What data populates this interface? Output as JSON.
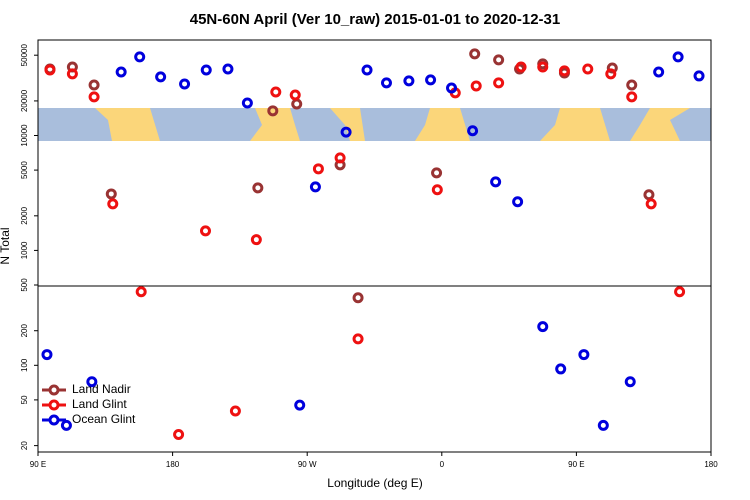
{
  "chart_data": {
    "type": "scatter",
    "title": "45N-60N April (Ver 10_raw)   2015-01-01 to 2020-12-31",
    "x_label": "Longitude (deg E)",
    "y_label": "N Total",
    "xlim": [
      90,
      540
    ],
    "xticks": [
      {
        "value": 90,
        "label": "90 E"
      },
      180,
      {
        "value": 270,
        "label": "90 W"
      },
      {
        "value": 360,
        "label": "0"
      },
      {
        "value": 450,
        "label": "90 E"
      },
      {
        "value": 540,
        "label": "180"
      }
    ],
    "ylim": [
      17.6,
      67800
    ],
    "yticks": [
      20,
      50,
      100,
      200,
      500,
      1000,
      2000,
      5000,
      10000,
      20000,
      50000
    ],
    "log_y": true,
    "legend": "bottom-left",
    "series": [
      {
        "name": "Land Nadir",
        "color": "#993333",
        "x": [
          98,
          113,
          127.5,
          139,
          237,
          247,
          263,
          292,
          304,
          356.5,
          382,
          398,
          412,
          427.5,
          442,
          474,
          487,
          498.5
        ],
        "values": [
          37900,
          39500,
          27500,
          3100,
          3500,
          16400,
          18800,
          5550,
          387,
          4730,
          51300,
          45500,
          37900,
          42000,
          35000,
          38700,
          27500,
          3050
        ]
      },
      {
        "name": "Land Glint",
        "color": "#ee1111",
        "x": [
          98,
          113,
          127.5,
          140,
          159,
          184,
          202,
          222,
          236,
          249,
          262,
          277.5,
          292,
          304,
          357,
          369,
          383,
          398,
          413,
          427.5,
          442,
          457.6,
          473,
          487,
          500,
          519
        ],
        "values": [
          37200,
          34400,
          21700,
          2540,
          437,
          25,
          1480,
          40,
          1240,
          23900,
          22500,
          5130,
          6380,
          170,
          3370,
          23500,
          27000,
          28700,
          39500,
          39500,
          36500,
          37900,
          34400,
          21700,
          2540,
          437
        ]
      },
      {
        "name": "Ocean Glint",
        "color": "#0000dd",
        "x": [
          96,
          109,
          126,
          145.6,
          158,
          172,
          188,
          202.5,
          217,
          230,
          265,
          275.5,
          296,
          310,
          323,
          338,
          352.5,
          366.5,
          380.6,
          396,
          410.7,
          427.5,
          439.5,
          455,
          468,
          486,
          505,
          518,
          532
        ],
        "values": [
          124,
          30,
          72,
          35700,
          48300,
          32400,
          28100,
          37200,
          37900,
          19200,
          45,
          3570,
          10700,
          37200,
          28700,
          29900,
          30500,
          25900,
          11000,
          3950,
          2650,
          217,
          93,
          124,
          30,
          72,
          35700,
          48300,
          33000
        ]
      }
    ]
  }
}
